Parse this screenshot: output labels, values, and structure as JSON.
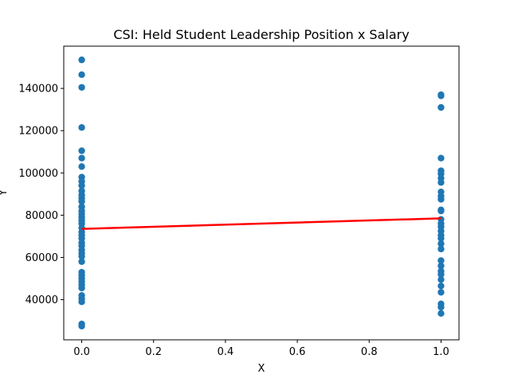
{
  "chart_data": {
    "type": "scatter",
    "title": "CSI: Held Student Leadership Position x Salary",
    "xlabel": "X",
    "ylabel": "Y",
    "xlim": [
      -0.05,
      1.05
    ],
    "ylim": [
      21000,
      160000
    ],
    "xticks": [
      0.0,
      0.2,
      0.4,
      0.6,
      0.8,
      1.0
    ],
    "xtick_labels": [
      "0.0",
      "0.2",
      "0.4",
      "0.6",
      "0.8",
      "1.0"
    ],
    "yticks": [
      40000,
      60000,
      80000,
      100000,
      120000,
      140000
    ],
    "ytick_labels": [
      "40000",
      "60000",
      "80000",
      "100000",
      "120000",
      "140000"
    ],
    "grid": false,
    "series": [
      {
        "kind": "scatter",
        "color": "#1f77b4",
        "points": [
          [
            0,
            153500
          ],
          [
            0,
            146500
          ],
          [
            0,
            140500
          ],
          [
            0,
            121500
          ],
          [
            0,
            110500
          ],
          [
            0,
            107000
          ],
          [
            0,
            103000
          ],
          [
            0,
            98000
          ],
          [
            0,
            96000
          ],
          [
            0,
            94000
          ],
          [
            0,
            91500
          ],
          [
            0,
            89500
          ],
          [
            0,
            88000
          ],
          [
            0,
            86500
          ],
          [
            0,
            84000
          ],
          [
            0,
            82000
          ],
          [
            0,
            80500
          ],
          [
            0,
            79000
          ],
          [
            0,
            77500
          ],
          [
            0,
            76000
          ],
          [
            0,
            74000
          ],
          [
            0,
            72000
          ],
          [
            0,
            70500
          ],
          [
            0,
            69000
          ],
          [
            0,
            67000
          ],
          [
            0,
            65500
          ],
          [
            0,
            63500
          ],
          [
            0,
            62000
          ],
          [
            0,
            60500
          ],
          [
            0,
            58000
          ],
          [
            0,
            53000
          ],
          [
            0,
            51500
          ],
          [
            0,
            50000
          ],
          [
            0,
            48500
          ],
          [
            0,
            47000
          ],
          [
            0,
            45500
          ],
          [
            0,
            42000
          ],
          [
            0,
            40500
          ],
          [
            0,
            39000
          ],
          [
            0,
            28500
          ],
          [
            0,
            27500
          ],
          [
            1,
            137000
          ],
          [
            1,
            136500
          ],
          [
            1,
            131000
          ],
          [
            1,
            107000
          ],
          [
            1,
            101000
          ],
          [
            1,
            99500
          ],
          [
            1,
            97500
          ],
          [
            1,
            95500
          ],
          [
            1,
            91000
          ],
          [
            1,
            89000
          ],
          [
            1,
            87500
          ],
          [
            1,
            82500
          ],
          [
            1,
            82000
          ],
          [
            1,
            78000
          ],
          [
            1,
            76000
          ],
          [
            1,
            74500
          ],
          [
            1,
            72500
          ],
          [
            1,
            70500
          ],
          [
            1,
            69000
          ],
          [
            1,
            66500
          ],
          [
            1,
            64000
          ],
          [
            1,
            58500
          ],
          [
            1,
            56000
          ],
          [
            1,
            53500
          ],
          [
            1,
            52000
          ],
          [
            1,
            49500
          ],
          [
            1,
            46500
          ],
          [
            1,
            43500
          ],
          [
            1,
            38000
          ],
          [
            1,
            36500
          ],
          [
            1,
            33500
          ]
        ]
      },
      {
        "kind": "line",
        "color": "#ff0000",
        "points": [
          [
            0,
            73500
          ],
          [
            1,
            78500
          ]
        ]
      }
    ]
  }
}
